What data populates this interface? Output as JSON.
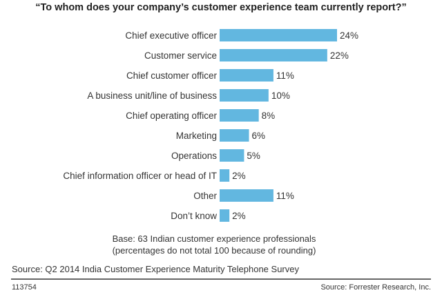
{
  "chart_data": {
    "type": "bar",
    "orientation": "horizontal",
    "title": "“To whom does your company’s customer experience team currently report?”",
    "categories": [
      "Chief executive officer",
      "Customer service",
      "Chief customer officer",
      "A business unit/line of business",
      "Chief operating officer",
      "Marketing",
      "Operations",
      "Chief information officer or head of IT",
      "Other",
      "Don’t know"
    ],
    "values": [
      24,
      22,
      11,
      10,
      8,
      6,
      5,
      2,
      11,
      2
    ],
    "value_labels": [
      "24%",
      "22%",
      "11%",
      "10%",
      "8%",
      "6%",
      "5%",
      "2%",
      "11%",
      "2%"
    ],
    "unit": "%",
    "xlim": [
      0,
      24
    ],
    "grid": false,
    "bar_color": "#62b7e0"
  },
  "notes": {
    "base": "Base: 63 Indian customer experience professionals",
    "rounding": "(percentages do not total 100 because of rounding)"
  },
  "source": "Source: Q2 2014 India Customer Experience Maturity Telephone Survey",
  "footer": {
    "id": "113754",
    "credit": "Source: Forrester Research, Inc."
  }
}
